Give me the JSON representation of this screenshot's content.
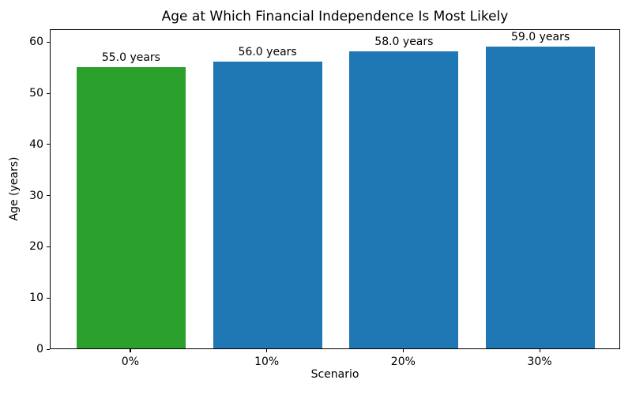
{
  "chart_data": {
    "type": "bar",
    "title": "Age at Which Financial Independence Is Most Likely",
    "xlabel": "Scenario",
    "ylabel": "Age (years)",
    "categories": [
      "0%",
      "10%",
      "20%",
      "30%"
    ],
    "values": [
      55.0,
      56.0,
      58.0,
      59.0
    ],
    "bar_labels": [
      "55.0 years",
      "56.0 years",
      "58.0 years",
      "59.0 years"
    ],
    "bar_colors": [
      "#2ca02c",
      "#1f77b4",
      "#1f77b4",
      "#1f77b4"
    ],
    "colors": {
      "highlight_green": "#2ca02c",
      "default_blue": "#1f77b4",
      "frame": "#000000"
    },
    "yticks": [
      0,
      10,
      20,
      30,
      40,
      50,
      60
    ],
    "ylim": [
      0,
      62.5
    ],
    "grid": false,
    "legend": null,
    "frame": "full-box"
  }
}
